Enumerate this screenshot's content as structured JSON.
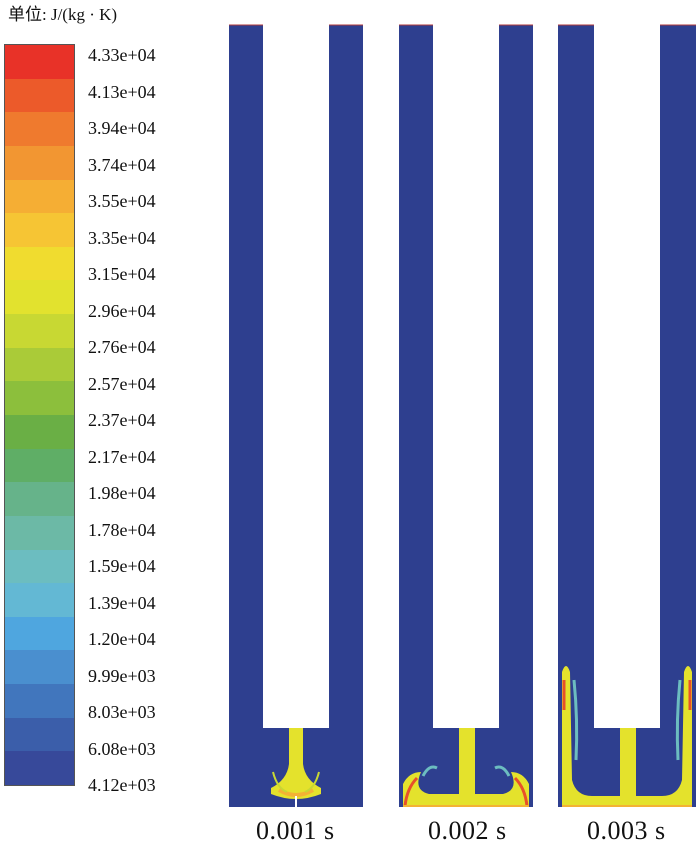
{
  "unit_label": "单位: J/(kg · K)",
  "colorbar": {
    "colors": [
      "#e83228",
      "#ec5a2a",
      "#ef7a2e",
      "#f29632",
      "#f5ae34",
      "#f6c534",
      "#f0dc2f",
      "#e2e22e",
      "#c8d833",
      "#aacb38",
      "#8cbf3c",
      "#6aaf45",
      "#5fae66",
      "#66b38a",
      "#6cb9a6",
      "#6cbdc0",
      "#63b8d4",
      "#4fa6df",
      "#4a8fcf",
      "#4176bd",
      "#3b5eaa",
      "#37499a"
    ],
    "tick_labels": [
      "4.33e+04",
      "4.13e+04",
      "3.94e+04",
      "3.74e+04",
      "3.55e+04",
      "3.35e+04",
      "3.15e+04",
      "2.96e+04",
      "2.76e+04",
      "2.57e+04",
      "2.37e+04",
      "2.17e+04",
      "1.98e+04",
      "1.78e+04",
      "1.59e+04",
      "1.39e+04",
      "1.20e+04",
      "9.99e+03",
      "8.03e+03",
      "6.08e+03",
      "4.12e+03"
    ]
  },
  "panels": [
    {
      "time": "0.001 s"
    },
    {
      "time": "0.002 s"
    },
    {
      "time": "0.003 s"
    }
  ],
  "colors": {
    "domain": "#2e3f8f",
    "insert": "#ffffff",
    "jet": "#e4e22c",
    "hot": "#e7502a"
  }
}
